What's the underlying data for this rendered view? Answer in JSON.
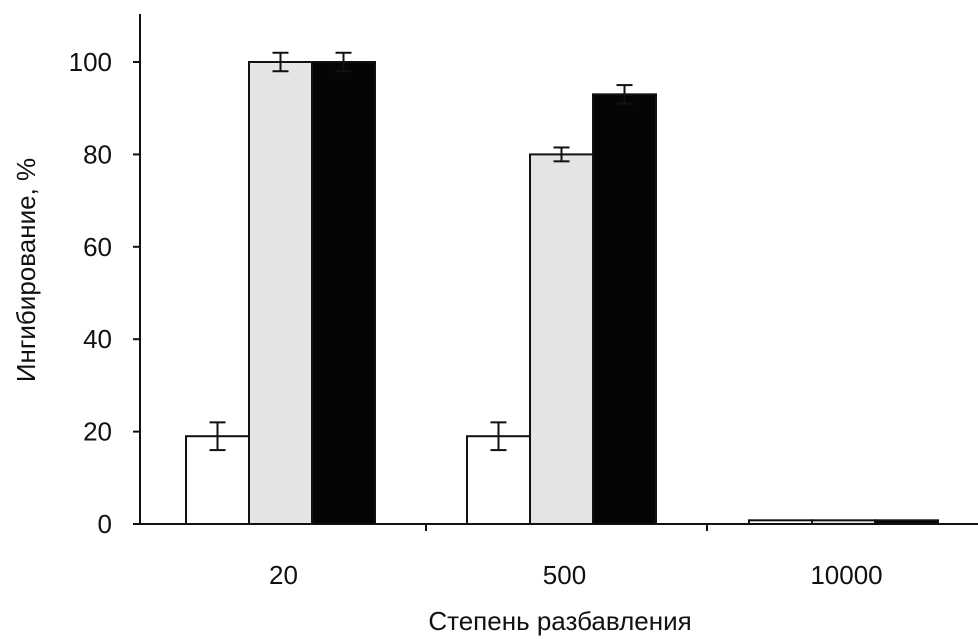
{
  "chart_data": {
    "type": "bar",
    "xlabel": "Степень разбавления",
    "ylabel": "Ингибирование, %",
    "ylim": [
      0,
      100
    ],
    "yticks": [
      0,
      20,
      40,
      60,
      80,
      100
    ],
    "categories": [
      "20",
      "500",
      "10000"
    ],
    "grid": false,
    "legend": "none",
    "series": [
      {
        "fill": "#ffffff",
        "values": [
          19,
          19,
          0.8
        ],
        "errors": [
          3,
          3,
          0
        ]
      },
      {
        "fill": "#e4e4e4",
        "values": [
          100,
          80,
          0.8
        ],
        "errors": [
          2,
          1.5,
          0
        ]
      },
      {
        "fill": "#050505",
        "values": [
          100,
          93,
          0.8
        ],
        "errors": [
          2,
          2,
          0
        ]
      }
    ]
  }
}
